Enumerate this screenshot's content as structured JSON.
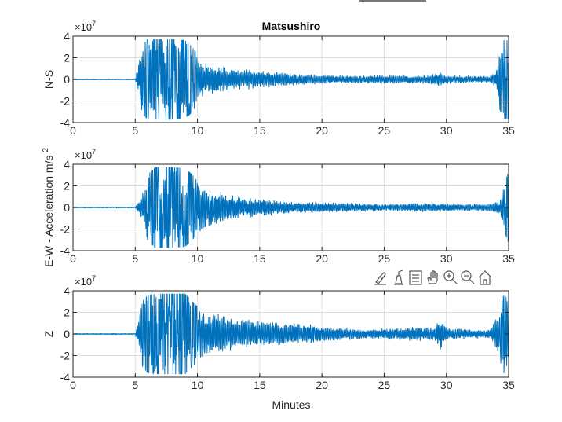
{
  "figure": {
    "title": "Matsushiro",
    "xlabel": "Minutes",
    "shared_ylabel": "Acceleration  m/s",
    "shared_ylabel_sup": "2",
    "trace_color": "#0072BD"
  },
  "toolbar": {
    "icons": [
      "brush-icon",
      "data-tip-icon",
      "legend-icon",
      "pan-icon",
      "zoom-in-icon",
      "zoom-out-icon",
      "home-icon"
    ]
  },
  "chart_data": [
    {
      "type": "line",
      "ylabel": "N-S",
      "exponent_base": "×10",
      "exponent_power": "7",
      "xlim": [
        0,
        35
      ],
      "ylim": [
        -4,
        4
      ],
      "xticks": [
        "0",
        "5",
        "10",
        "15",
        "20",
        "25",
        "30",
        "35"
      ],
      "yticks": [
        "-4",
        "-2",
        "0",
        "2",
        "4"
      ],
      "grid": true,
      "units_multiplier": 10000000,
      "envelope": [
        [
          0,
          0.05
        ],
        [
          5.0,
          0.05
        ],
        [
          5.2,
          1.2
        ],
        [
          5.6,
          3.2
        ],
        [
          6.0,
          3.7
        ],
        [
          7.0,
          3.7
        ],
        [
          8.0,
          3.7
        ],
        [
          9.0,
          3.6
        ],
        [
          9.6,
          3.0
        ],
        [
          10.0,
          2.2
        ],
        [
          11.0,
          1.5
        ],
        [
          12.0,
          1.2
        ],
        [
          13.0,
          1.0
        ],
        [
          15.0,
          0.8
        ],
        [
          17.0,
          0.6
        ],
        [
          20.0,
          0.4
        ],
        [
          22.0,
          0.35
        ],
        [
          25.0,
          0.4
        ],
        [
          28.0,
          0.35
        ],
        [
          29.5,
          0.7
        ],
        [
          30.0,
          0.4
        ],
        [
          32.0,
          0.3
        ],
        [
          33.5,
          0.3
        ],
        [
          34.0,
          0.8
        ],
        [
          34.3,
          2.8
        ],
        [
          34.6,
          3.6
        ],
        [
          35.0,
          3.6
        ]
      ]
    },
    {
      "type": "line",
      "ylabel": "E-W",
      "exponent_base": "×10",
      "exponent_power": "7",
      "xlim": [
        0,
        35
      ],
      "ylim": [
        -4,
        4
      ],
      "xticks": [
        "0",
        "5",
        "10",
        "15",
        "20",
        "25",
        "30",
        "35"
      ],
      "yticks": [
        "-4",
        "-2",
        "0",
        "2",
        "4"
      ],
      "grid": true,
      "units_multiplier": 10000000,
      "envelope": [
        [
          0,
          0.05
        ],
        [
          5.0,
          0.05
        ],
        [
          5.3,
          0.6
        ],
        [
          5.7,
          1.8
        ],
        [
          6.0,
          3.0
        ],
        [
          6.6,
          3.7
        ],
        [
          8.0,
          3.7
        ],
        [
          9.0,
          3.6
        ],
        [
          9.6,
          3.0
        ],
        [
          10.0,
          2.4
        ],
        [
          11.0,
          1.8
        ],
        [
          12.0,
          1.4
        ],
        [
          13.0,
          1.1
        ],
        [
          15.0,
          0.8
        ],
        [
          17.0,
          0.6
        ],
        [
          20.0,
          0.45
        ],
        [
          23.0,
          0.4
        ],
        [
          25.0,
          0.3
        ],
        [
          28.0,
          0.4
        ],
        [
          30.0,
          0.35
        ],
        [
          33.0,
          0.3
        ],
        [
          34.3,
          0.6
        ],
        [
          34.6,
          2.0
        ],
        [
          35.0,
          3.3
        ]
      ]
    },
    {
      "type": "line",
      "ylabel": "Z",
      "exponent_base": "×10",
      "exponent_power": "7",
      "xlim": [
        0,
        35
      ],
      "ylim": [
        -4,
        4
      ],
      "xticks": [
        "0",
        "5",
        "10",
        "15",
        "20",
        "25",
        "30",
        "35"
      ],
      "yticks": [
        "-4",
        "-2",
        "0",
        "2",
        "4"
      ],
      "grid": true,
      "units_multiplier": 10000000,
      "envelope": [
        [
          0,
          0.05
        ],
        [
          5.0,
          0.05
        ],
        [
          5.3,
          1.5
        ],
        [
          5.6,
          3.0
        ],
        [
          6.0,
          3.6
        ],
        [
          7.0,
          3.7
        ],
        [
          9.0,
          3.7
        ],
        [
          9.6,
          3.0
        ],
        [
          10.0,
          2.5
        ],
        [
          11.0,
          2.0
        ],
        [
          12.0,
          1.8
        ],
        [
          13.0,
          1.5
        ],
        [
          15.0,
          1.2
        ],
        [
          17.0,
          1.0
        ],
        [
          19.0,
          1.0
        ],
        [
          21.0,
          0.6
        ],
        [
          23.0,
          0.5
        ],
        [
          25.0,
          0.5
        ],
        [
          27.0,
          0.6
        ],
        [
          29.0,
          0.7
        ],
        [
          29.5,
          1.5
        ],
        [
          30.0,
          0.6
        ],
        [
          32.0,
          0.4
        ],
        [
          33.5,
          0.4
        ],
        [
          34.2,
          2.0
        ],
        [
          34.6,
          3.6
        ],
        [
          35.0,
          3.6
        ]
      ]
    }
  ]
}
